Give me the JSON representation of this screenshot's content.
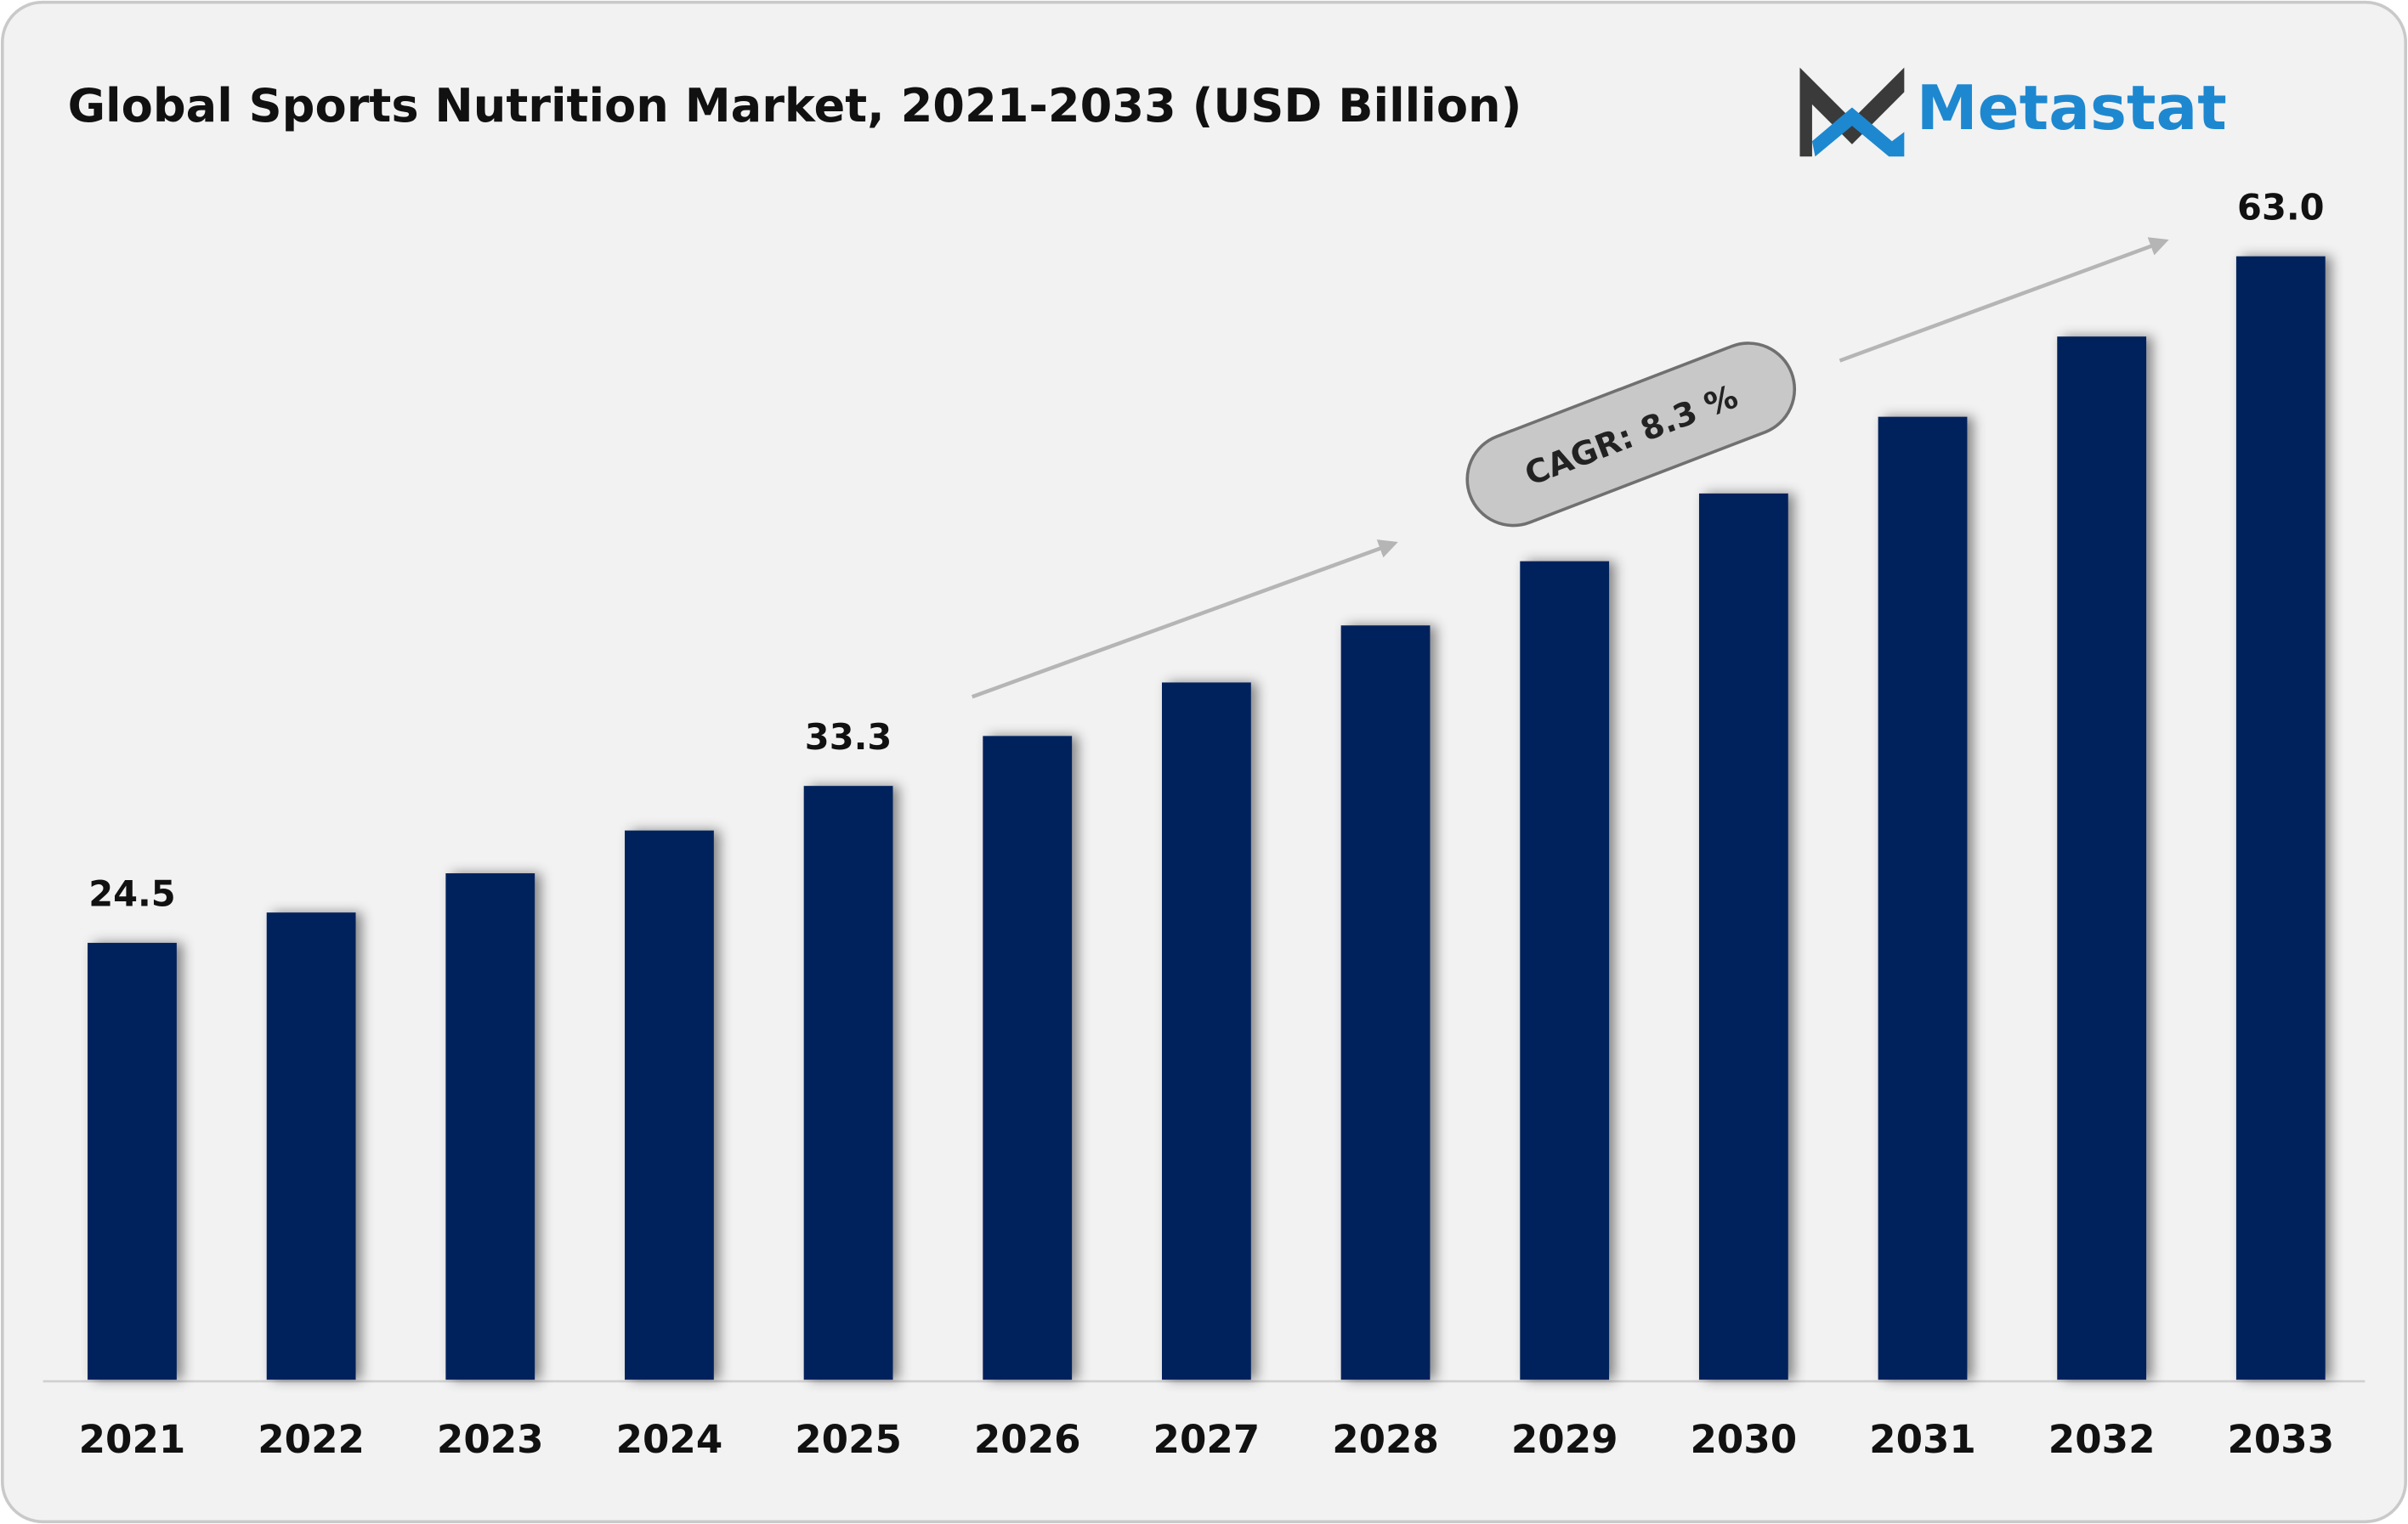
{
  "chart_data": {
    "type": "bar",
    "title": "Global Sports Nutrition Market, 2021-2033 (USD Billion)",
    "brand": "Metastat",
    "annotation": "CAGR: 8.3 %",
    "categories": [
      "2021",
      "2022",
      "2023",
      "2024",
      "2025",
      "2026",
      "2027",
      "2028",
      "2029",
      "2030",
      "2031",
      "2032",
      "2033"
    ],
    "values": [
      24.5,
      26.2,
      28.4,
      30.8,
      33.3,
      36.1,
      39.1,
      42.3,
      45.9,
      49.7,
      54.0,
      58.5,
      63.0
    ],
    "value_labels": [
      "24.5",
      null,
      null,
      null,
      "33.3",
      null,
      null,
      null,
      null,
      null,
      null,
      null,
      "63.0"
    ],
    "color": "#03205c"
  }
}
